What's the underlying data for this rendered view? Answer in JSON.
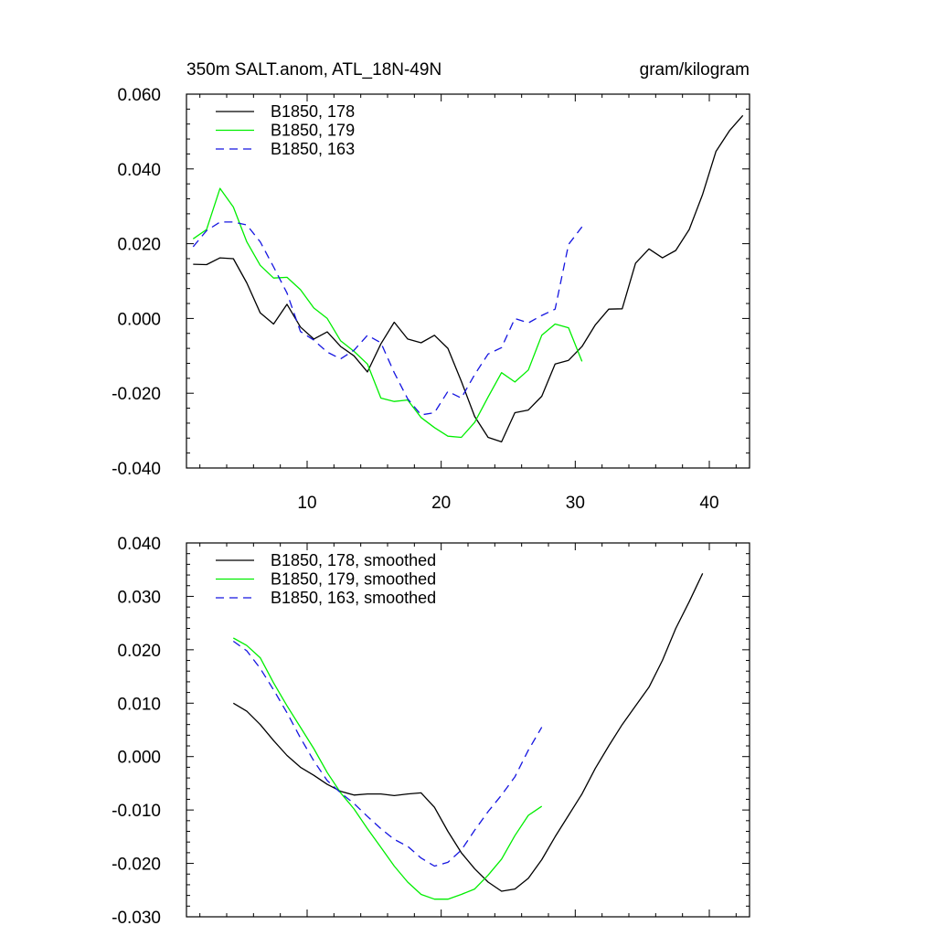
{
  "chart_data": [
    {
      "type": "line",
      "title_left": "350m SALT.anom, ATL_18N-49N",
      "title_right": "gram/kilogram",
      "xlim": [
        1,
        43
      ],
      "ylim": [
        -0.04,
        0.06
      ],
      "xticks": [
        10,
        20,
        30,
        40
      ],
      "xtick_labels": [
        "10",
        "20",
        "30",
        "40"
      ],
      "yticks": [
        -0.04,
        -0.02,
        0.0,
        0.02,
        0.04,
        0.06
      ],
      "ytick_labels": [
        "-0.040",
        "-0.020",
        "0.000",
        "0.020",
        "0.040",
        "0.060"
      ],
      "series": [
        {
          "name": "B1850, 178",
          "color": "#000000",
          "dash": "solid",
          "x": [
            1.5,
            2.5,
            3.5,
            4.5,
            5.5,
            6.5,
            7.5,
            8.5,
            9.5,
            10.5,
            11.5,
            12.5,
            13.5,
            14.5,
            15.5,
            16.5,
            17.5,
            18.5,
            19.5,
            20.5,
            21.5,
            22.5,
            23.5,
            24.5,
            25.5,
            26.5,
            27.5,
            28.5,
            29.5,
            30.5,
            31.5,
            32.5,
            33.5,
            34.5,
            35.5,
            36.5,
            37.5,
            38.5,
            39.5,
            40.5,
            41.5,
            42.5
          ],
          "values": [
            0.0145,
            0.0144,
            0.0162,
            0.016,
            0.0095,
            0.0015,
            -0.0015,
            0.0038,
            -0.0023,
            -0.0055,
            -0.0036,
            -0.0075,
            -0.01,
            -0.0143,
            -0.0068,
            -0.001,
            -0.0055,
            -0.0065,
            -0.0045,
            -0.008,
            -0.0168,
            -0.0262,
            -0.0318,
            -0.033,
            -0.0252,
            -0.0245,
            -0.0208,
            -0.0122,
            -0.0112,
            -0.0075,
            -0.0017,
            0.0025,
            0.0026,
            0.0148,
            0.0186,
            0.0162,
            0.0182,
            0.0238,
            0.0332,
            0.0447,
            0.0502,
            0.0543
          ]
        },
        {
          "name": "B1850, 179",
          "color": "#00ee00",
          "dash": "solid",
          "x": [
            1.5,
            2.5,
            3.5,
            4.5,
            5.5,
            6.5,
            7.5,
            8.5,
            9.5,
            10.5,
            11.5,
            12.5,
            13.5,
            14.5,
            15.5,
            16.5,
            17.5,
            18.5,
            19.5,
            20.5,
            21.5,
            22.5,
            23.5,
            24.5,
            25.5,
            26.5,
            27.5,
            28.5,
            29.5,
            30.5
          ],
          "values": [
            0.0213,
            0.0238,
            0.0348,
            0.0298,
            0.0205,
            0.0142,
            0.0108,
            0.011,
            0.0077,
            0.0028,
            0.0,
            -0.006,
            -0.0088,
            -0.0122,
            -0.0213,
            -0.0222,
            -0.0218,
            -0.0265,
            -0.0292,
            -0.0315,
            -0.0318,
            -0.0278,
            -0.021,
            -0.0145,
            -0.017,
            -0.0138,
            -0.0045,
            -0.0015,
            -0.0025,
            -0.0115
          ]
        },
        {
          "name": "B1850, 163",
          "color": "#1515e0",
          "dash": "dashed",
          "x": [
            1.5,
            2.5,
            3.5,
            4.5,
            5.5,
            6.5,
            7.5,
            8.5,
            9.5,
            10.5,
            11.5,
            12.5,
            13.5,
            14.5,
            15.5,
            16.5,
            17.5,
            18.5,
            19.5,
            20.5,
            21.5,
            22.5,
            23.5,
            24.5,
            25.5,
            26.5,
            27.5,
            28.5,
            29.5,
            30.5
          ],
          "values": [
            0.0192,
            0.0235,
            0.0258,
            0.0258,
            0.025,
            0.0205,
            0.0138,
            0.0068,
            -0.0035,
            -0.0058,
            -0.009,
            -0.0108,
            -0.0085,
            -0.0045,
            -0.0065,
            -0.0145,
            -0.0215,
            -0.0258,
            -0.0252,
            -0.0195,
            -0.0213,
            -0.015,
            -0.0095,
            -0.0078,
            0.0,
            -0.0012,
            0.0008,
            0.0025,
            0.0198,
            0.0245
          ]
        }
      ]
    },
    {
      "type": "line",
      "xlim": [
        1,
        43
      ],
      "ylim": [
        -0.03,
        0.04
      ],
      "xticks": [
        10,
        20,
        30,
        40
      ],
      "yticks": [
        -0.03,
        -0.02,
        -0.01,
        0.0,
        0.01,
        0.02,
        0.03,
        0.04
      ],
      "ytick_labels": [
        "-0.030",
        "-0.020",
        "-0.010",
        "0.000",
        "0.010",
        "0.020",
        "0.030",
        "0.040"
      ],
      "series": [
        {
          "name": "B1850, 178, smoothed",
          "color": "#000000",
          "dash": "solid",
          "x": [
            4.5,
            5.5,
            6.5,
            7.5,
            8.5,
            9.5,
            10.5,
            11.5,
            12.5,
            13.5,
            14.5,
            15.5,
            16.5,
            17.5,
            18.5,
            19.5,
            20.5,
            21.5,
            22.5,
            23.5,
            24.5,
            25.5,
            26.5,
            27.5,
            28.5,
            29.5,
            30.5,
            31.5,
            32.5,
            33.5,
            34.5,
            35.5,
            36.5,
            37.5,
            38.5,
            39.5
          ],
          "values": [
            0.01,
            0.0085,
            0.006,
            0.003,
            0.0002,
            -0.002,
            -0.0035,
            -0.0052,
            -0.0065,
            -0.0072,
            -0.007,
            -0.007,
            -0.0073,
            -0.007,
            -0.0068,
            -0.0095,
            -0.014,
            -0.018,
            -0.021,
            -0.0235,
            -0.0252,
            -0.0248,
            -0.0228,
            -0.0193,
            -0.015,
            -0.011,
            -0.007,
            -0.0022,
            0.002,
            0.006,
            0.0095,
            0.013,
            0.018,
            0.024,
            0.029,
            0.0343
          ]
        },
        {
          "name": "B1850, 179, smoothed",
          "color": "#00ee00",
          "dash": "solid",
          "x": [
            4.5,
            5.5,
            6.5,
            7.5,
            8.5,
            9.5,
            10.5,
            11.5,
            12.5,
            13.5,
            14.5,
            15.5,
            16.5,
            17.5,
            18.5,
            19.5,
            20.5,
            21.5,
            22.5,
            23.5,
            24.5,
            25.5,
            26.5,
            27.5
          ],
          "values": [
            0.0222,
            0.0208,
            0.0185,
            0.0138,
            0.0095,
            0.0055,
            0.0015,
            -0.003,
            -0.0068,
            -0.0098,
            -0.0135,
            -0.017,
            -0.0205,
            -0.0235,
            -0.0258,
            -0.0267,
            -0.0267,
            -0.0258,
            -0.0248,
            -0.0222,
            -0.0192,
            -0.0148,
            -0.011,
            -0.0093
          ]
        },
        {
          "name": "B1850, 163, smoothed",
          "color": "#1515e0",
          "dash": "dashed",
          "x": [
            4.5,
            5.5,
            6.5,
            7.5,
            8.5,
            9.5,
            10.5,
            11.5,
            12.5,
            13.5,
            14.5,
            15.5,
            16.5,
            17.5,
            18.5,
            19.5,
            20.5,
            21.5,
            22.5,
            23.5,
            24.5,
            25.5,
            26.5,
            27.5
          ],
          "values": [
            0.0216,
            0.0198,
            0.0165,
            0.0125,
            0.0082,
            0.0035,
            -0.0008,
            -0.0045,
            -0.0068,
            -0.0088,
            -0.0112,
            -0.0135,
            -0.0155,
            -0.0168,
            -0.019,
            -0.0205,
            -0.0198,
            -0.0175,
            -0.0138,
            -0.0103,
            -0.0072,
            -0.0038,
            0.0012,
            0.0055
          ]
        }
      ]
    }
  ]
}
